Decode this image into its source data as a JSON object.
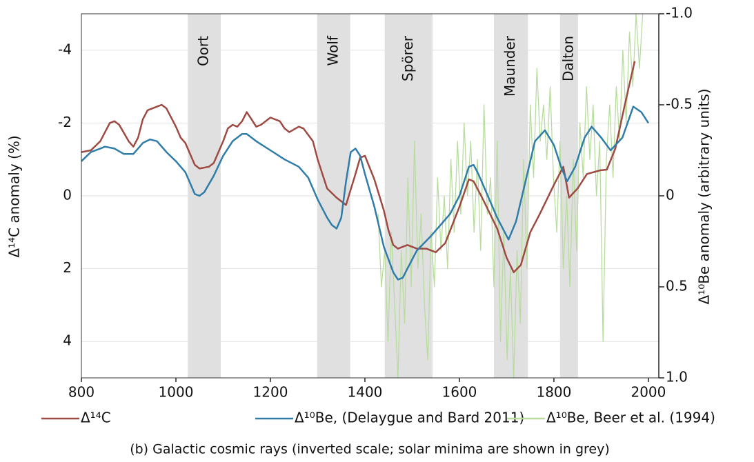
{
  "chart_data": {
    "type": "line",
    "caption": "(b) Galactic cosmic rays (inverted scale; solar minima are shown in grey)",
    "ylabel": "Δ¹⁴C anomaly (%)",
    "y2label": "Δ¹⁰Be anomaly (arbitrary units)",
    "xlim": [
      800,
      2022
    ],
    "xticks": [
      800,
      1000,
      1200,
      1400,
      1600,
      1800,
      2000
    ],
    "ylim": [
      -5,
      5
    ],
    "yticks": [
      -4,
      -2,
      0,
      2,
      4
    ],
    "y_inverted": true,
    "y2lim": [
      -1,
      1
    ],
    "y2ticks": [
      {
        "value": -1,
        "label": "-1.0"
      },
      -0.5,
      0,
      0.5,
      {
        "value": 1,
        "label": "1.0"
      }
    ],
    "y2_inverted": true,
    "grid": true,
    "band_color": "#e0e0e0",
    "bands": [
      {
        "label": "Oort",
        "start": 1025,
        "end": 1095
      },
      {
        "label": "Wolf",
        "start": 1299,
        "end": 1369
      },
      {
        "label": "Spörer",
        "start": 1442,
        "end": 1543
      },
      {
        "label": "Maunder",
        "start": 1673,
        "end": 1745
      },
      {
        "label": "Dalton",
        "start": 1813,
        "end": 1851
      }
    ],
    "series": [
      {
        "name": "Δ¹⁰Be, Beer et al. (1994)",
        "color": "#b8dc9e",
        "width": 1.3,
        "axis": "y2",
        "x": [
          1428,
          1435,
          1442,
          1449,
          1456,
          1463,
          1470,
          1477,
          1484,
          1491,
          1498,
          1505,
          1512,
          1519,
          1526,
          1533,
          1540,
          1547,
          1554,
          1561,
          1568,
          1575,
          1582,
          1589,
          1596,
          1603,
          1610,
          1617,
          1624,
          1631,
          1638,
          1645,
          1652,
          1659,
          1666,
          1673,
          1680,
          1687,
          1694,
          1701,
          1708,
          1715,
          1722,
          1729,
          1736,
          1743,
          1750,
          1757,
          1764,
          1771,
          1778,
          1785,
          1792,
          1799,
          1806,
          1813,
          1820,
          1827,
          1834,
          1841,
          1848,
          1855,
          1862,
          1869,
          1876,
          1883,
          1890,
          1897,
          1904,
          1911,
          1918,
          1925,
          1932,
          1939,
          1946,
          1953,
          1960,
          1967,
          1974,
          1981,
          1988
        ],
        "values": [
          0.1,
          0.5,
          0.3,
          0.8,
          0.2,
          0.6,
          1.0,
          0.3,
          0.7,
          -0.1,
          0.5,
          -0.3,
          0.4,
          0.1,
          0.6,
          0.9,
          0.2,
          0.5,
          -0.1,
          0.3,
          0.0,
          0.4,
          -0.2,
          0.2,
          -0.3,
          0.1,
          -0.4,
          0.0,
          -0.3,
          0.2,
          -0.2,
          0.3,
          -0.5,
          0.1,
          -0.1,
          0.5,
          -0.3,
          0.8,
          0.2,
          0.9,
          0.4,
          1.0,
          0.3,
          0.7,
          -0.2,
          0.4,
          -0.5,
          -0.1,
          -0.7,
          -0.3,
          -0.5,
          -0.2,
          -0.6,
          -0.1,
          0.2,
          -0.3,
          0.4,
          0.0,
          0.5,
          -0.2,
          0.3,
          -0.4,
          -0.1,
          -0.6,
          -0.2,
          -0.5,
          0.0,
          -0.3,
          0.8,
          -0.2,
          -0.5,
          -0.1,
          -0.6,
          -0.3,
          -0.8,
          -0.4,
          -0.9,
          -0.6,
          -1.0,
          -0.7,
          -1.0
        ]
      },
      {
        "name": "Δ¹⁴C",
        "color": "#9e4a42",
        "width": 2.5,
        "x": [
          800,
          820,
          840,
          860,
          870,
          880,
          900,
          910,
          920,
          930,
          940,
          960,
          970,
          980,
          1000,
          1010,
          1020,
          1040,
          1050,
          1070,
          1080,
          1100,
          1110,
          1120,
          1130,
          1140,
          1150,
          1160,
          1170,
          1180,
          1200,
          1220,
          1230,
          1240,
          1260,
          1270,
          1290,
          1300,
          1320,
          1340,
          1360,
          1380,
          1390,
          1400,
          1420,
          1440,
          1450,
          1460,
          1470,
          1490,
          1510,
          1530,
          1550,
          1570,
          1600,
          1620,
          1630,
          1650,
          1680,
          1700,
          1715,
          1730,
          1750,
          1770,
          1800,
          1820,
          1832,
          1850,
          1870,
          1898,
          1912,
          1930,
          1950,
          1971
        ],
        "values": [
          -1.2,
          -1.25,
          -1.5,
          -2.0,
          -2.05,
          -1.95,
          -1.5,
          -1.35,
          -1.6,
          -2.1,
          -2.35,
          -2.45,
          -2.5,
          -2.4,
          -1.9,
          -1.6,
          -1.45,
          -0.85,
          -0.75,
          -0.8,
          -0.9,
          -1.5,
          -1.85,
          -1.95,
          -1.9,
          -2.05,
          -2.3,
          -2.1,
          -1.9,
          -1.95,
          -2.15,
          -2.05,
          -1.85,
          -1.75,
          -1.9,
          -1.85,
          -1.5,
          -1.0,
          -0.2,
          0.05,
          0.25,
          -0.6,
          -1.05,
          -1.1,
          -0.45,
          0.4,
          0.95,
          1.35,
          1.45,
          1.35,
          1.45,
          1.45,
          1.55,
          1.3,
          0.3,
          -0.45,
          -0.4,
          0.1,
          0.9,
          1.7,
          2.1,
          1.9,
          1.0,
          0.5,
          -0.3,
          -0.8,
          0.05,
          -0.2,
          -0.6,
          -0.7,
          -0.72,
          -1.3,
          -2.5,
          -3.7
        ]
      },
      {
        "name": "Δ¹⁰Be, (Delaygue and Bard 2011)",
        "color": "#2f7ca8",
        "width": 2.5,
        "axis": "y2",
        "x": [
          800,
          820,
          840,
          850,
          870,
          890,
          910,
          930,
          945,
          960,
          980,
          1000,
          1020,
          1040,
          1050,
          1060,
          1080,
          1100,
          1120,
          1140,
          1150,
          1170,
          1200,
          1230,
          1260,
          1280,
          1300,
          1320,
          1330,
          1340,
          1350,
          1360,
          1370,
          1380,
          1390,
          1400,
          1420,
          1440,
          1460,
          1470,
          1480,
          1490,
          1510,
          1540,
          1580,
          1600,
          1620,
          1630,
          1640,
          1660,
          1680,
          1700,
          1704,
          1720,
          1740,
          1760,
          1781,
          1800,
          1815,
          1828,
          1845,
          1865,
          1880,
          1900,
          1920,
          1945,
          1968,
          1985,
          2000
        ],
        "values": [
          -0.19,
          -0.24,
          -0.26,
          -0.27,
          -0.26,
          -0.23,
          -0.23,
          -0.29,
          -0.31,
          -0.3,
          -0.24,
          -0.19,
          -0.13,
          -0.01,
          0.0,
          -0.02,
          -0.11,
          -0.22,
          -0.3,
          -0.34,
          -0.34,
          -0.3,
          -0.25,
          -0.2,
          -0.16,
          -0.1,
          0.02,
          0.12,
          0.16,
          0.18,
          0.12,
          -0.08,
          -0.24,
          -0.26,
          -0.22,
          -0.12,
          0.06,
          0.28,
          0.42,
          0.46,
          0.45,
          0.4,
          0.3,
          0.22,
          0.1,
          0.0,
          -0.16,
          -0.17,
          -0.12,
          0.0,
          0.12,
          0.22,
          0.24,
          0.14,
          -0.08,
          -0.3,
          -0.36,
          -0.28,
          -0.16,
          -0.08,
          -0.16,
          -0.32,
          -0.38,
          -0.32,
          -0.25,
          -0.32,
          -0.49,
          -0.46,
          -0.4
        ]
      }
    ]
  }
}
